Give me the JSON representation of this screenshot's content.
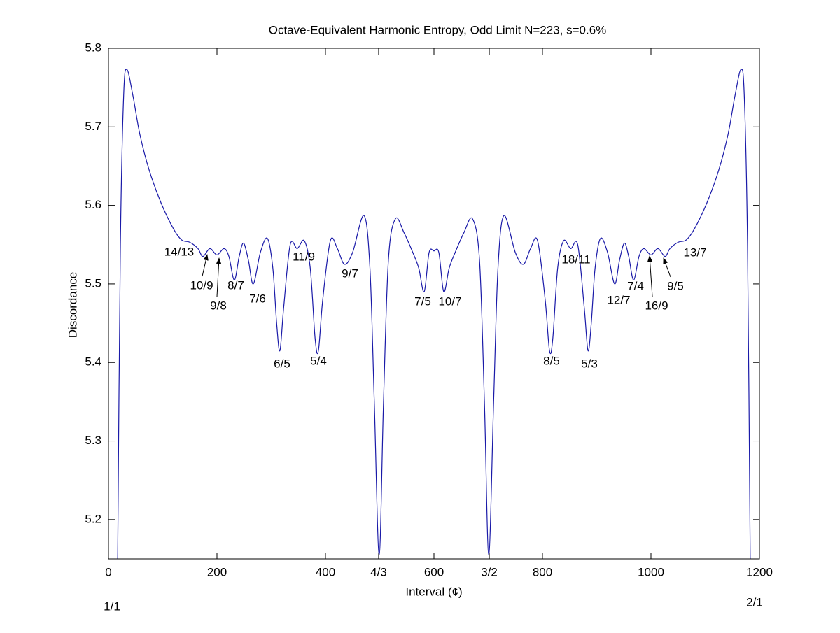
{
  "chart_data": {
    "type": "line",
    "title": "Octave-Equivalent Harmonic Entropy, Odd Limit N=223, s=0.6%",
    "xlabel": "Interval (¢)",
    "ylabel": "Discordance",
    "x": [
      17,
      22,
      28,
      34,
      45,
      58,
      75,
      97,
      120,
      135,
      150,
      165,
      174,
      187,
      200,
      213,
      222,
      232,
      241,
      249,
      258,
      267,
      280,
      293,
      303,
      310,
      316,
      323,
      335,
      348,
      361,
      372,
      381,
      387,
      395,
      409,
      422,
      435,
      450,
      471,
      482,
      490,
      499,
      507,
      516,
      529,
      545,
      561,
      572,
      582,
      591,
      600,
      609,
      618,
      628,
      639,
      655,
      671,
      684,
      693,
      701,
      710,
      718,
      729,
      750,
      765,
      778,
      791,
      805,
      813,
      819,
      828,
      839,
      852,
      865,
      877,
      884,
      890,
      897,
      907,
      920,
      933,
      942,
      951,
      959,
      968,
      978,
      987,
      1000,
      1013,
      1026,
      1035,
      1050,
      1065,
      1080,
      1103,
      1125,
      1142,
      1155,
      1166,
      1172,
      1178,
      1183
    ],
    "series": [
      {
        "color": "#1a1aa8",
        "values": [
          5.15,
          5.55,
          5.74,
          5.773,
          5.74,
          5.69,
          5.645,
          5.603,
          5.57,
          5.556,
          5.553,
          5.545,
          5.535,
          5.545,
          5.537,
          5.545,
          5.535,
          5.505,
          5.535,
          5.552,
          5.53,
          5.5,
          5.54,
          5.558,
          5.52,
          5.45,
          5.415,
          5.47,
          5.55,
          5.545,
          5.555,
          5.52,
          5.43,
          5.415,
          5.48,
          5.555,
          5.545,
          5.525,
          5.54,
          5.587,
          5.52,
          5.35,
          5.155,
          5.35,
          5.53,
          5.583,
          5.565,
          5.54,
          5.52,
          5.49,
          5.54,
          5.542,
          5.54,
          5.49,
          5.52,
          5.54,
          5.565,
          5.583,
          5.53,
          5.35,
          5.155,
          5.35,
          5.52,
          5.587,
          5.54,
          5.525,
          5.545,
          5.555,
          5.48,
          5.415,
          5.43,
          5.52,
          5.555,
          5.545,
          5.55,
          5.47,
          5.415,
          5.45,
          5.52,
          5.558,
          5.54,
          5.5,
          5.53,
          5.552,
          5.535,
          5.505,
          5.535,
          5.545,
          5.537,
          5.545,
          5.535,
          5.545,
          5.553,
          5.556,
          5.57,
          5.603,
          5.645,
          5.69,
          5.74,
          5.773,
          5.74,
          5.55,
          5.15
        ]
      }
    ],
    "xlim": [
      0,
      1200
    ],
    "ylim": [
      5.15,
      5.8
    ],
    "xticks": [
      0,
      200,
      400,
      {
        "value": 498,
        "label": "4/3"
      },
      600,
      {
        "value": 702,
        "label": "3/2"
      },
      800,
      1000,
      1200
    ],
    "yticks": [
      5.2,
      5.3,
      5.4,
      5.5,
      5.6,
      5.7,
      5.8
    ],
    "annotations": [
      "14/13",
      "10/9",
      "9/8",
      "8/7",
      "7/6",
      "6/5",
      "5/4",
      "11/9",
      "9/7",
      "7/5",
      "10/7",
      "8/5",
      "5/3",
      "18/11",
      "12/7",
      "7/4",
      "16/9",
      "9/5",
      "13/7",
      "1/1",
      "2/1"
    ]
  }
}
